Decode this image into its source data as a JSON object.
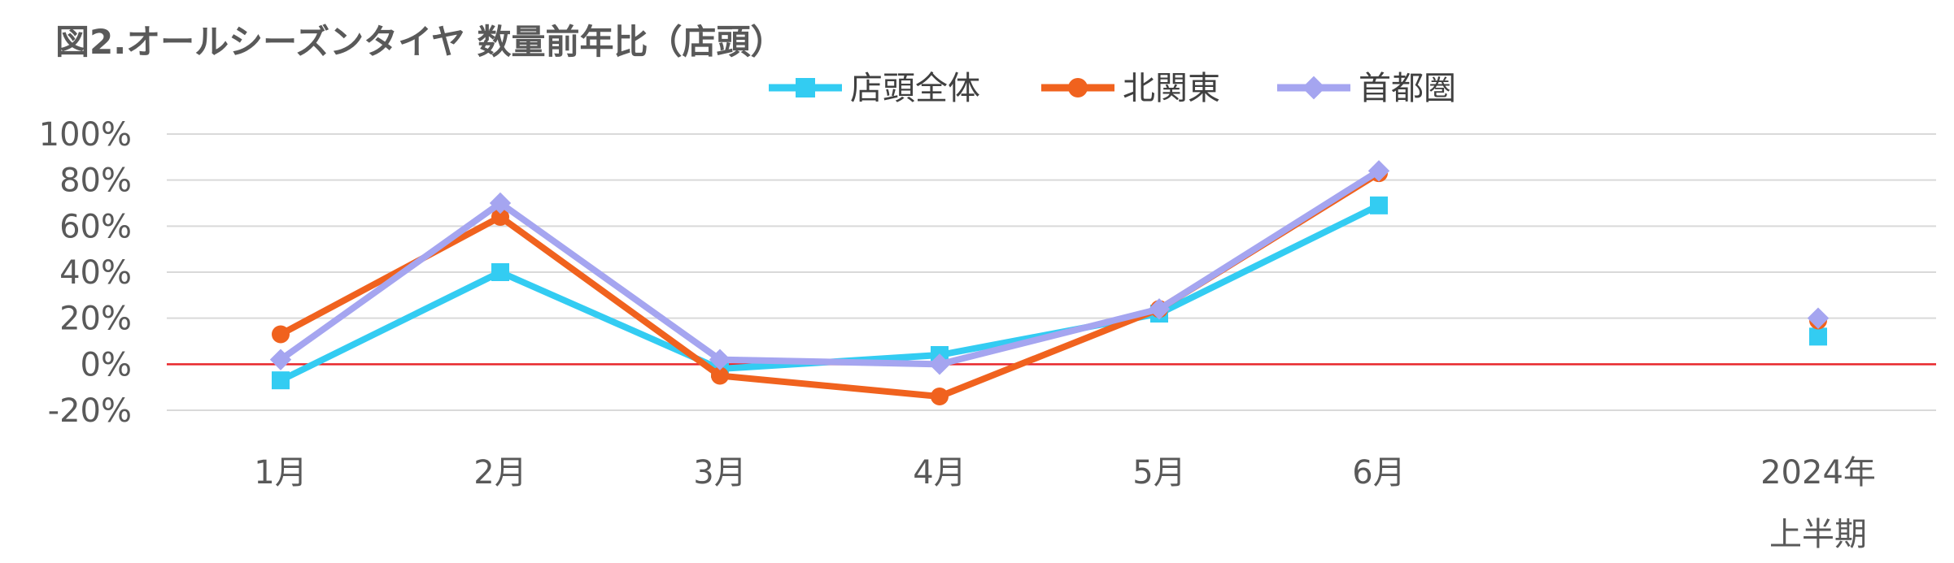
{
  "chart_data": {
    "type": "line",
    "title": "図2.オールシーズンタイヤ 数量前年比（店頭）",
    "categories": [
      "1月",
      "2月",
      "3月",
      "4月",
      "5月",
      "6月",
      "2024年\n上半期"
    ],
    "y_tick_labels": [
      "100%",
      "80%",
      "60%",
      "40%",
      "20%",
      "0%",
      "-20%"
    ],
    "ylim": [
      -20,
      100
    ],
    "grid": true,
    "legend_position": "top-center",
    "series": [
      {
        "name": "店頭全体",
        "marker": "square",
        "color": "#33ccf2",
        "values": [
          -7,
          40,
          -2,
          4,
          22,
          69,
          12
        ]
      },
      {
        "name": "北関東",
        "marker": "circle",
        "color": "#f0621e",
        "values": [
          13,
          64,
          -5,
          -14,
          24,
          83,
          19
        ]
      },
      {
        "name": "首都圏",
        "marker": "diamond",
        "color": "#a5a5f0",
        "values": [
          2,
          70,
          2,
          0,
          24,
          84,
          20
        ]
      }
    ]
  }
}
